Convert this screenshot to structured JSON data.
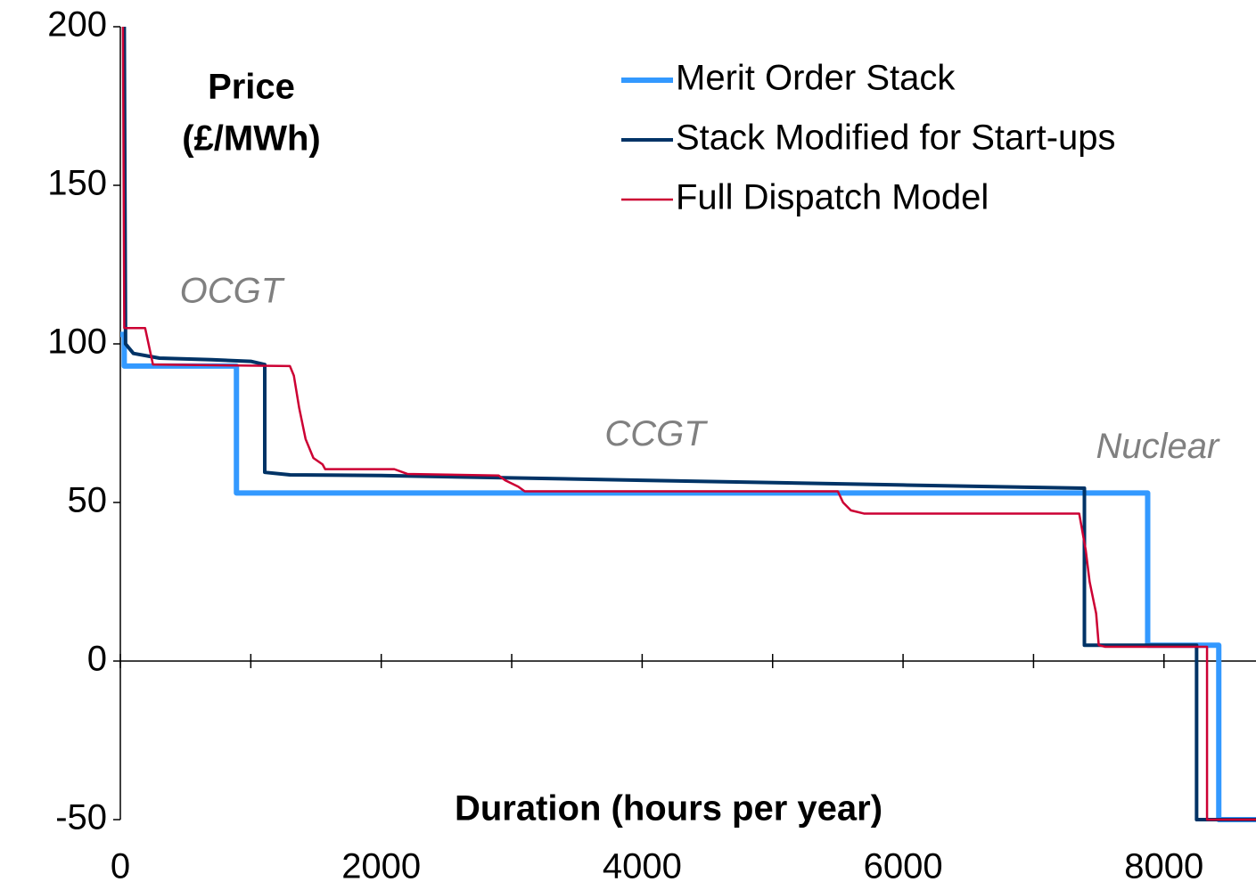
{
  "chart_data": {
    "type": "line",
    "y_axis_label": [
      "Price",
      "(£/MWh)"
    ],
    "x_axis_label": "Duration (hours per year)",
    "annotations": [
      {
        "text": "OCGT",
        "x": 850,
        "y": 116
      },
      {
        "text": "CCGT",
        "x": 4100,
        "y": 71
      },
      {
        "text": "Nuclear",
        "x": 7950,
        "y": 67
      }
    ],
    "xlim": [
      0,
      8760
    ],
    "xticks": [
      0,
      2000,
      4000,
      6000,
      8000
    ],
    "xminor_ticks": [
      1000,
      3000,
      5000,
      7000
    ],
    "ylim": [
      -50,
      200
    ],
    "yticks": [
      -50,
      0,
      50,
      100,
      150,
      200
    ],
    "legend": "top-right",
    "series": [
      {
        "name": "Merit Order Stack",
        "color": "#3399ff",
        "width": 6,
        "x": [
          0,
          30,
          30,
          890,
          890,
          7875,
          7875,
          8420,
          8420,
          8760
        ],
        "values": [
          103,
          103,
          93,
          93,
          53,
          53,
          5,
          5,
          -50,
          -50
        ]
      },
      {
        "name": "Stack Modified for Start-ups",
        "color": "#003366",
        "width": 4,
        "x": [
          30,
          40,
          100,
          300,
          700,
          1000,
          1107,
          1107,
          1300,
          2000,
          4000,
          6000,
          7390,
          7390,
          8250,
          8250,
          8760
        ],
        "values": [
          200,
          100,
          97,
          95.5,
          95,
          94.5,
          93.5,
          59.5,
          58.7,
          58.5,
          57,
          55.5,
          54.5,
          5,
          5,
          -50,
          -50
        ]
      },
      {
        "name": "Full Dispatch Model",
        "color": "#cc0033",
        "width": 2.5,
        "x": [
          20,
          30,
          190,
          250,
          1300,
          1330,
          1370,
          1420,
          1480,
          1550,
          1570,
          2100,
          2200,
          2900,
          2950,
          3050,
          3100,
          5500,
          5540,
          5600,
          5700,
          7350,
          7400,
          7430,
          7480,
          7500,
          7550,
          8330,
          8330,
          8760
        ],
        "values": [
          200,
          105,
          105,
          93.5,
          93,
          90,
          80,
          70,
          64,
          62,
          60.5,
          60.5,
          59,
          58.5,
          57,
          55,
          53.5,
          53.5,
          50,
          47.5,
          46.5,
          46.5,
          35,
          25,
          15,
          5,
          4.5,
          4.5,
          -50,
          -50
        ]
      }
    ]
  }
}
